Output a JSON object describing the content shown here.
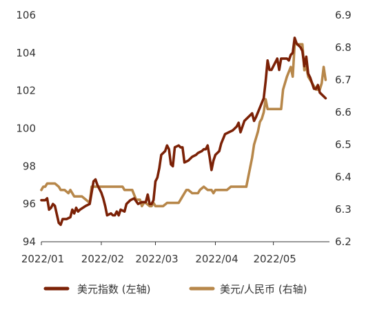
{
  "chart_data": {
    "type": "line",
    "title": "",
    "xlabel": "",
    "ylabel_left": "",
    "ylabel_right": "",
    "x_ticks": [
      "2022/01",
      "2022/02",
      "2022/03",
      "2022/04",
      "2022/05"
    ],
    "y_left": {
      "min": 94,
      "max": 106,
      "ticks": [
        "94",
        "96",
        "98",
        "100",
        "102",
        "104",
        "106"
      ]
    },
    "y_right": {
      "min": 6.2,
      "max": 6.9,
      "ticks": [
        "6.2",
        "6.3",
        "6.4",
        "6.5",
        "6.6",
        "6.7",
        "6.8",
        "6.9"
      ]
    },
    "x_range": [
      "2022-01-01",
      "2022-05-30"
    ],
    "grid": false,
    "legend_position": "bottom",
    "series": [
      {
        "name": "美元指数 (左轴)",
        "axis": "left",
        "color": "#7b2106",
        "points": [
          [
            "2022-01-01",
            96.2
          ],
          [
            "2022-01-02",
            96.2
          ],
          [
            "2022-01-03",
            96.2
          ],
          [
            "2022-01-04",
            96.3
          ],
          [
            "2022-01-05",
            95.7
          ],
          [
            "2022-01-06",
            95.8
          ],
          [
            "2022-01-07",
            96.0
          ],
          [
            "2022-01-08",
            95.9
          ],
          [
            "2022-01-10",
            95.0
          ],
          [
            "2022-01-11",
            94.9
          ],
          [
            "2022-01-12",
            95.2
          ],
          [
            "2022-01-14",
            95.2
          ],
          [
            "2022-01-16",
            95.3
          ],
          [
            "2022-01-17",
            95.7
          ],
          [
            "2022-01-18",
            95.5
          ],
          [
            "2022-01-19",
            95.8
          ],
          [
            "2022-01-20",
            95.6
          ],
          [
            "2022-01-21",
            95.7
          ],
          [
            "2022-01-24",
            95.9
          ],
          [
            "2022-01-26",
            96.0
          ],
          [
            "2022-01-28",
            97.2
          ],
          [
            "2022-01-29",
            97.3
          ],
          [
            "2022-01-30",
            97.0
          ],
          [
            "2022-01-31",
            96.8
          ],
          [
            "2022-02-01",
            96.6
          ],
          [
            "2022-02-02",
            96.3
          ],
          [
            "2022-02-03",
            95.9
          ],
          [
            "2022-02-04",
            95.4
          ],
          [
            "2022-02-06",
            95.5
          ],
          [
            "2022-02-07",
            95.4
          ],
          [
            "2022-02-08",
            95.4
          ],
          [
            "2022-02-09",
            95.6
          ],
          [
            "2022-02-10",
            95.4
          ],
          [
            "2022-02-11",
            95.7
          ],
          [
            "2022-02-13",
            95.6
          ],
          [
            "2022-02-14",
            96.0
          ],
          [
            "2022-02-16",
            96.2
          ],
          [
            "2022-02-18",
            96.3
          ],
          [
            "2022-02-20",
            96.0
          ],
          [
            "2022-02-22",
            96.1
          ],
          [
            "2022-02-24",
            96.1
          ],
          [
            "2022-02-25",
            96.5
          ],
          [
            "2022-02-26",
            96.0
          ],
          [
            "2022-02-27",
            96.0
          ],
          [
            "2022-02-28",
            96.2
          ],
          [
            "2022-03-01",
            97.2
          ],
          [
            "2022-03-02",
            97.4
          ],
          [
            "2022-03-03",
            97.9
          ],
          [
            "2022-03-04",
            98.6
          ],
          [
            "2022-03-06",
            98.8
          ],
          [
            "2022-03-07",
            99.1
          ],
          [
            "2022-03-08",
            98.9
          ],
          [
            "2022-03-09",
            98.1
          ],
          [
            "2022-03-10",
            98.0
          ],
          [
            "2022-03-11",
            99.0
          ],
          [
            "2022-03-13",
            99.1
          ],
          [
            "2022-03-14",
            99.0
          ],
          [
            "2022-03-15",
            99.0
          ],
          [
            "2022-03-16",
            98.2
          ],
          [
            "2022-03-18",
            98.3
          ],
          [
            "2022-03-20",
            98.5
          ],
          [
            "2022-03-22",
            98.6
          ],
          [
            "2022-03-23",
            98.7
          ],
          [
            "2022-03-25",
            98.8
          ],
          [
            "2022-03-26",
            98.9
          ],
          [
            "2022-03-27",
            98.9
          ],
          [
            "2022-03-28",
            99.1
          ],
          [
            "2022-03-29",
            98.5
          ],
          [
            "2022-03-30",
            97.8
          ],
          [
            "2022-03-31",
            98.3
          ],
          [
            "2022-04-01",
            98.6
          ],
          [
            "2022-04-03",
            98.8
          ],
          [
            "2022-04-04",
            99.2
          ],
          [
            "2022-04-06",
            99.7
          ],
          [
            "2022-04-08",
            99.8
          ],
          [
            "2022-04-10",
            99.9
          ],
          [
            "2022-04-12",
            100.1
          ],
          [
            "2022-04-13",
            100.3
          ],
          [
            "2022-04-14",
            99.8
          ],
          [
            "2022-04-16",
            100.4
          ],
          [
            "2022-04-18",
            100.6
          ],
          [
            "2022-04-20",
            100.8
          ],
          [
            "2022-04-21",
            100.4
          ],
          [
            "2022-04-22",
            100.6
          ],
          [
            "2022-04-24",
            101.1
          ],
          [
            "2022-04-26",
            101.6
          ],
          [
            "2022-04-27",
            102.5
          ],
          [
            "2022-04-28",
            103.6
          ],
          [
            "2022-04-29",
            103.1
          ],
          [
            "2022-04-30",
            103.1
          ],
          [
            "2022-05-02",
            103.5
          ],
          [
            "2022-05-03",
            103.7
          ],
          [
            "2022-05-04",
            103.1
          ],
          [
            "2022-05-05",
            103.7
          ],
          [
            "2022-05-06",
            103.7
          ],
          [
            "2022-05-08",
            103.7
          ],
          [
            "2022-05-09",
            103.6
          ],
          [
            "2022-05-10",
            103.9
          ],
          [
            "2022-05-11",
            104.0
          ],
          [
            "2022-05-12",
            104.8
          ],
          [
            "2022-05-13",
            104.5
          ],
          [
            "2022-05-15",
            104.3
          ],
          [
            "2022-05-16",
            104.1
          ],
          [
            "2022-05-17",
            103.3
          ],
          [
            "2022-05-18",
            103.8
          ],
          [
            "2022-05-19",
            102.9
          ],
          [
            "2022-05-20",
            102.7
          ],
          [
            "2022-05-22",
            102.1
          ],
          [
            "2022-05-23",
            102.1
          ],
          [
            "2022-05-24",
            102.3
          ],
          [
            "2022-05-25",
            101.9
          ],
          [
            "2022-05-27",
            101.7
          ],
          [
            "2022-05-28",
            101.6
          ]
        ]
      },
      {
        "name": "美元/人民币 (右轴)",
        "axis": "right",
        "color": "#b7874a",
        "points": [
          [
            "2022-01-01",
            6.36
          ],
          [
            "2022-01-02",
            6.37
          ],
          [
            "2022-01-03",
            6.37
          ],
          [
            "2022-01-04",
            6.38
          ],
          [
            "2022-01-06",
            6.38
          ],
          [
            "2022-01-08",
            6.38
          ],
          [
            "2022-01-10",
            6.37
          ],
          [
            "2022-01-11",
            6.36
          ],
          [
            "2022-01-13",
            6.36
          ],
          [
            "2022-01-15",
            6.35
          ],
          [
            "2022-01-16",
            6.36
          ],
          [
            "2022-01-18",
            6.34
          ],
          [
            "2022-01-20",
            6.34
          ],
          [
            "2022-01-22",
            6.34
          ],
          [
            "2022-01-24",
            6.33
          ],
          [
            "2022-01-26",
            6.32
          ],
          [
            "2022-01-27",
            6.37
          ],
          [
            "2022-01-29",
            6.37
          ],
          [
            "2022-01-31",
            6.37
          ],
          [
            "2022-02-02",
            6.37
          ],
          [
            "2022-02-05",
            6.37
          ],
          [
            "2022-02-08",
            6.37
          ],
          [
            "2022-02-10",
            6.37
          ],
          [
            "2022-02-12",
            6.37
          ],
          [
            "2022-02-13",
            6.36
          ],
          [
            "2022-02-15",
            6.36
          ],
          [
            "2022-02-17",
            6.36
          ],
          [
            "2022-02-19",
            6.33
          ],
          [
            "2022-02-21",
            6.33
          ],
          [
            "2022-02-22",
            6.31
          ],
          [
            "2022-02-23",
            6.32
          ],
          [
            "2022-02-24",
            6.32
          ],
          [
            "2022-02-26",
            6.31
          ],
          [
            "2022-02-27",
            6.31
          ],
          [
            "2022-02-28",
            6.32
          ],
          [
            "2022-03-01",
            6.31
          ],
          [
            "2022-03-03",
            6.31
          ],
          [
            "2022-03-05",
            6.31
          ],
          [
            "2022-03-07",
            6.32
          ],
          [
            "2022-03-09",
            6.32
          ],
          [
            "2022-03-11",
            6.32
          ],
          [
            "2022-03-13",
            6.32
          ],
          [
            "2022-03-14",
            6.33
          ],
          [
            "2022-03-15",
            6.34
          ],
          [
            "2022-03-16",
            6.35
          ],
          [
            "2022-03-17",
            6.36
          ],
          [
            "2022-03-18",
            6.36
          ],
          [
            "2022-03-20",
            6.35
          ],
          [
            "2022-03-22",
            6.35
          ],
          [
            "2022-03-23",
            6.35
          ],
          [
            "2022-03-24",
            6.36
          ],
          [
            "2022-03-26",
            6.37
          ],
          [
            "2022-03-28",
            6.36
          ],
          [
            "2022-03-30",
            6.36
          ],
          [
            "2022-03-31",
            6.35
          ],
          [
            "2022-04-01",
            6.36
          ],
          [
            "2022-04-03",
            6.36
          ],
          [
            "2022-04-05",
            6.36
          ],
          [
            "2022-04-07",
            6.36
          ],
          [
            "2022-04-09",
            6.37
          ],
          [
            "2022-04-10",
            6.37
          ],
          [
            "2022-04-12",
            6.37
          ],
          [
            "2022-04-13",
            6.37
          ],
          [
            "2022-04-15",
            6.37
          ],
          [
            "2022-04-17",
            6.37
          ],
          [
            "2022-04-18",
            6.4
          ],
          [
            "2022-04-19",
            6.43
          ],
          [
            "2022-04-20",
            6.46
          ],
          [
            "2022-04-21",
            6.5
          ],
          [
            "2022-04-22",
            6.52
          ],
          [
            "2022-04-23",
            6.54
          ],
          [
            "2022-04-24",
            6.57
          ],
          [
            "2022-04-25",
            6.58
          ],
          [
            "2022-04-26",
            6.6
          ],
          [
            "2022-04-27",
            6.64
          ],
          [
            "2022-04-28",
            6.61
          ],
          [
            "2022-04-29",
            6.61
          ],
          [
            "2022-05-01",
            6.61
          ],
          [
            "2022-05-03",
            6.61
          ],
          [
            "2022-05-05",
            6.61
          ],
          [
            "2022-05-06",
            6.67
          ],
          [
            "2022-05-07",
            6.69
          ],
          [
            "2022-05-08",
            6.71
          ],
          [
            "2022-05-10",
            6.74
          ],
          [
            "2022-05-11",
            6.71
          ],
          [
            "2022-05-12",
            6.81
          ],
          [
            "2022-05-13",
            6.81
          ],
          [
            "2022-05-15",
            6.81
          ],
          [
            "2022-05-16",
            6.81
          ],
          [
            "2022-05-17",
            6.73
          ],
          [
            "2022-05-18",
            6.74
          ],
          [
            "2022-05-19",
            6.71
          ],
          [
            "2022-05-20",
            6.7
          ],
          [
            "2022-05-21",
            6.69
          ],
          [
            "2022-05-22",
            6.68
          ],
          [
            "2022-05-23",
            6.67
          ],
          [
            "2022-05-24",
            6.67
          ],
          [
            "2022-05-25",
            6.67
          ],
          [
            "2022-05-26",
            6.69
          ],
          [
            "2022-05-27",
            6.74
          ],
          [
            "2022-05-28",
            6.7
          ]
        ]
      }
    ]
  }
}
